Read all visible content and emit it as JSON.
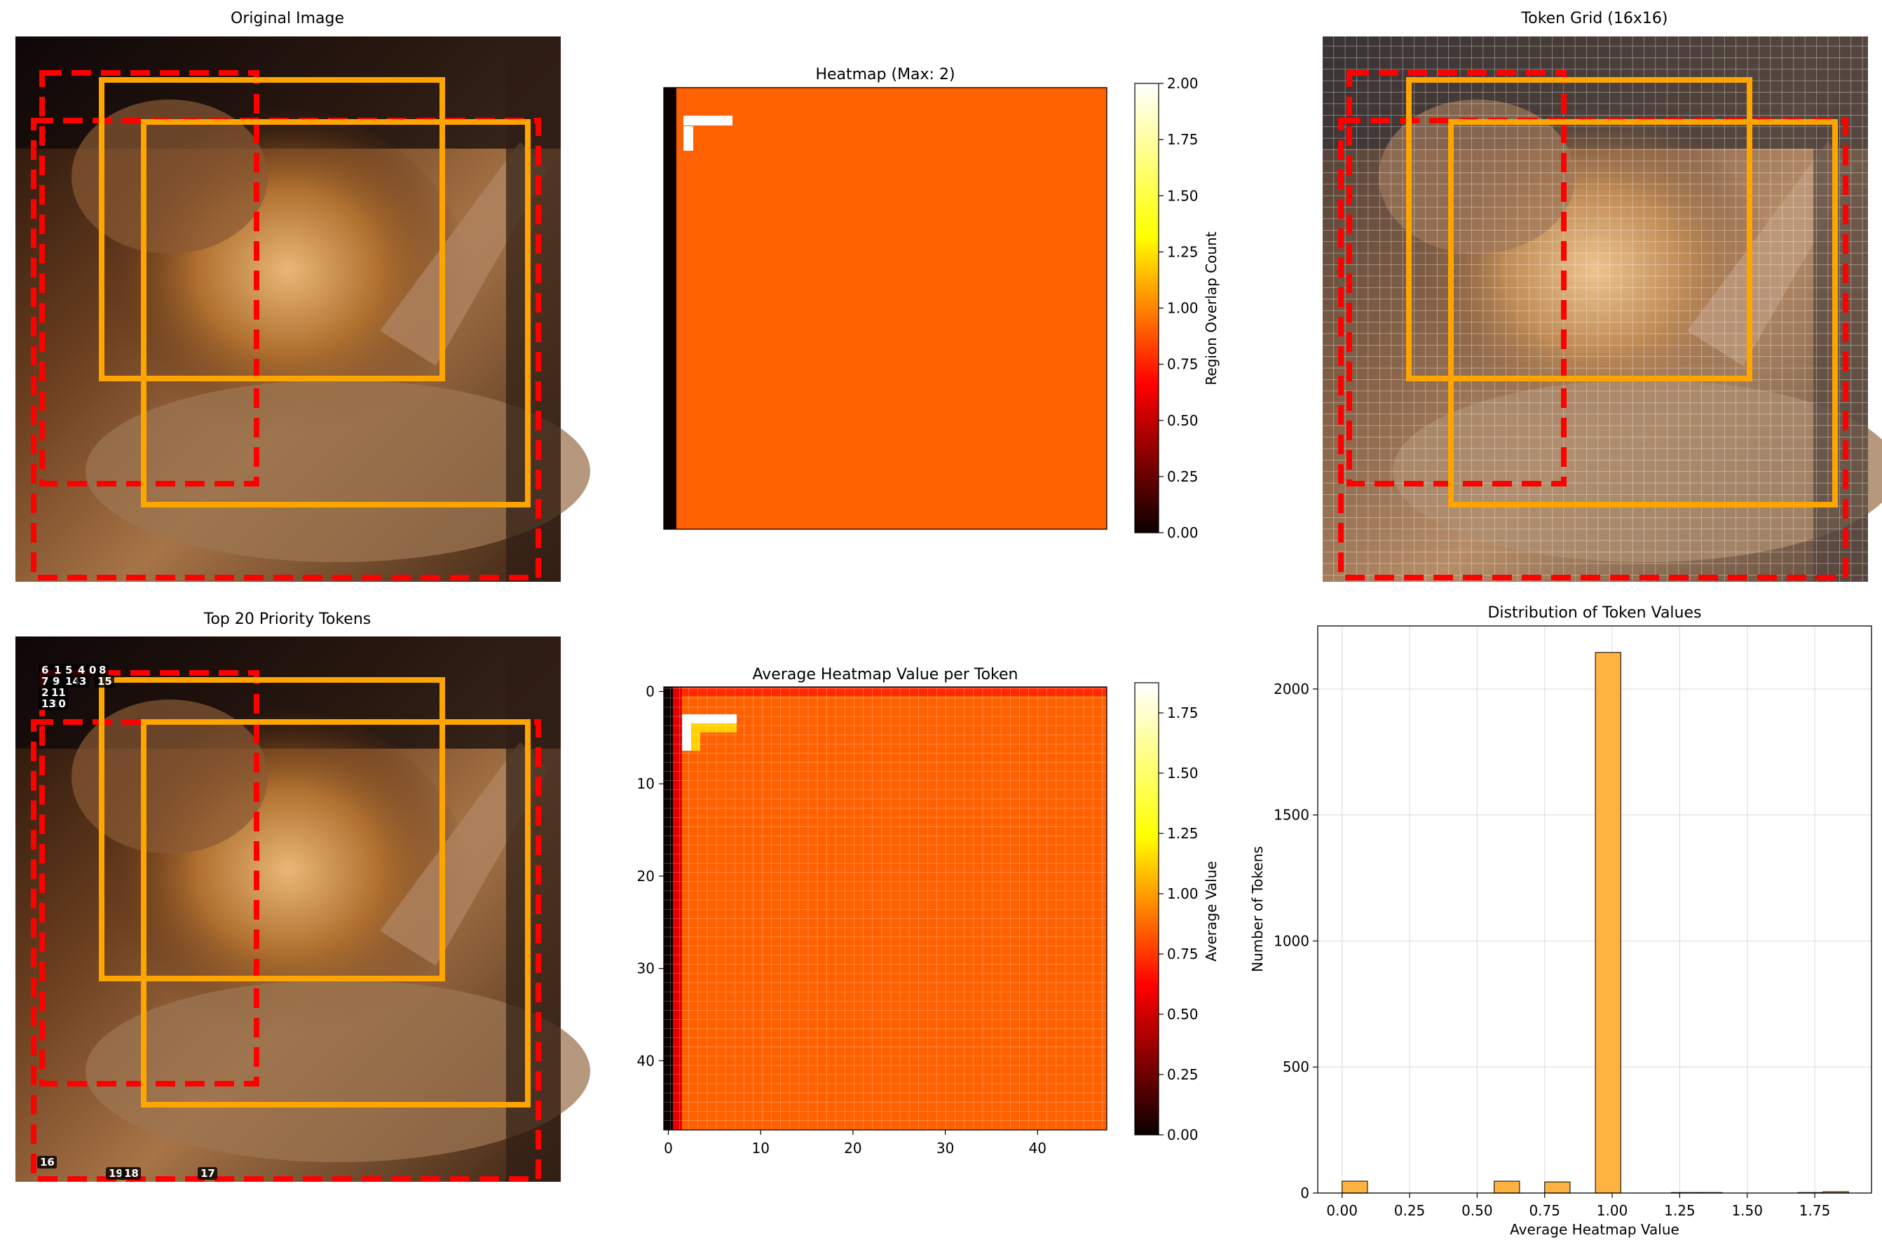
{
  "colors": {
    "orange_box": "#ffa500",
    "red_box": "#ff0000",
    "heat_bg": "#ff6100",
    "heat_white": "#ffffff",
    "hist_bar": "#ffb23f",
    "bar_edge": "#222222"
  },
  "photo": {
    "description_icon": "lion-photo"
  },
  "panels": {
    "original": {
      "title": "Original Image"
    },
    "heatmap": {
      "title": "Heatmap (Max: 2)",
      "colorbar_label": "Region Overlap Count",
      "colorbar_ticks": [
        "0.00",
        "0.25",
        "0.50",
        "0.75",
        "1.00",
        "1.25",
        "1.50",
        "1.75",
        "2.00"
      ]
    },
    "token_grid": {
      "title": "Token Grid (16x16)"
    },
    "priority": {
      "title": "Top 20 Priority Tokens",
      "labels": [
        "6",
        "1",
        "5",
        "4",
        "0",
        "8",
        "7",
        "9",
        "14",
        "3",
        "15",
        "2",
        "11",
        "12",
        "10",
        "13",
        "16",
        "19",
        "18",
        "17"
      ]
    },
    "avg": {
      "title": "Average Heatmap Value per Token",
      "colorbar_label": "Average Value",
      "colorbar_ticks": [
        "0.00",
        "0.25",
        "0.50",
        "0.75",
        "1.00",
        "1.25",
        "1.50",
        "1.75"
      ],
      "x_ticks": [
        "0",
        "10",
        "20",
        "30",
        "40"
      ],
      "y_ticks": [
        "0",
        "10",
        "20",
        "30",
        "40"
      ]
    }
  },
  "chart_data": {
    "type": "bar",
    "title": "Distribution of Token Values",
    "xlabel": "Average Heatmap Value",
    "ylabel": "Number of Tokens",
    "xlim": [
      -0.09,
      1.96
    ],
    "ylim": [
      0,
      2250
    ],
    "x_ticks": [
      "0.00",
      "0.25",
      "0.50",
      "0.75",
      "1.00",
      "1.25",
      "1.50",
      "1.75"
    ],
    "y_ticks": [
      "0",
      "500",
      "1000",
      "1500",
      "2000"
    ],
    "grid": true,
    "bin_width": 0.094,
    "bins": [
      {
        "x": 0.0,
        "count": 47
      },
      {
        "x": 0.094,
        "count": 0
      },
      {
        "x": 0.188,
        "count": 0
      },
      {
        "x": 0.281,
        "count": 0
      },
      {
        "x": 0.375,
        "count": 0
      },
      {
        "x": 0.469,
        "count": 0
      },
      {
        "x": 0.563,
        "count": 47
      },
      {
        "x": 0.656,
        "count": 0
      },
      {
        "x": 0.75,
        "count": 44
      },
      {
        "x": 0.844,
        "count": 0
      },
      {
        "x": 0.938,
        "count": 2145
      },
      {
        "x": 1.031,
        "count": 0
      },
      {
        "x": 1.125,
        "count": 0
      },
      {
        "x": 1.219,
        "count": 2
      },
      {
        "x": 1.313,
        "count": 2
      },
      {
        "x": 1.406,
        "count": 0
      },
      {
        "x": 1.5,
        "count": 0
      },
      {
        "x": 1.594,
        "count": 0
      },
      {
        "x": 1.688,
        "count": 2
      },
      {
        "x": 1.781,
        "count": 5
      }
    ]
  }
}
